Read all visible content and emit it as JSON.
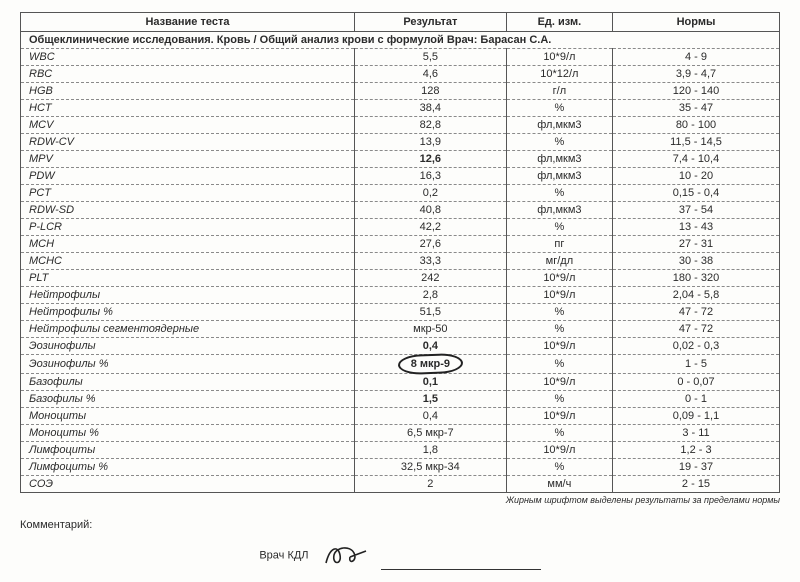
{
  "headers": {
    "name": "Название теста",
    "result": "Результат",
    "unit": "Ед. изм.",
    "norm": "Нормы"
  },
  "section_title": "Общеклинические исследования. Кровь / Общий анализ крови с формулой  Врач: Барасан С.А.",
  "rows": [
    {
      "name": "WBC",
      "result": "5,5",
      "unit": "10*9/л",
      "norm": "4 - 9"
    },
    {
      "name": "RBC",
      "result": "4,6",
      "unit": "10*12/л",
      "norm": "3,9 - 4,7"
    },
    {
      "name": "HGB",
      "result": "128",
      "unit": "г/л",
      "norm": "120 - 140"
    },
    {
      "name": "HCT",
      "result": "38,4",
      "unit": "%",
      "norm": "35 - 47"
    },
    {
      "name": "MCV",
      "result": "82,8",
      "unit": "фл,мкм3",
      "norm": "80 - 100"
    },
    {
      "name": "RDW-CV",
      "result": "13,9",
      "unit": "%",
      "norm": "11,5 - 14,5"
    },
    {
      "name": "MPV",
      "result": "12,6",
      "unit": "фл,мкм3",
      "norm": "7,4 - 10,4",
      "bold": true
    },
    {
      "name": "PDW",
      "result": "16,3",
      "unit": "фл,мкм3",
      "norm": "10 - 20"
    },
    {
      "name": "PCT",
      "result": "0,2",
      "unit": "%",
      "norm": "0,15 - 0,4"
    },
    {
      "name": "RDW-SD",
      "result": "40,8",
      "unit": "фл,мкм3",
      "norm": "37 - 54"
    },
    {
      "name": "P-LCR",
      "result": "42,2",
      "unit": "%",
      "norm": "13 - 43"
    },
    {
      "name": "MCH",
      "result": "27,6",
      "unit": "пг",
      "norm": "27 - 31"
    },
    {
      "name": "MCHC",
      "result": "33,3",
      "unit": "мг/дл",
      "norm": "30 - 38"
    },
    {
      "name": "PLT",
      "result": "242",
      "unit": "10*9/л",
      "norm": "180 - 320"
    },
    {
      "name": "Нейтрофилы",
      "result": "2,8",
      "unit": "10*9/л",
      "norm": "2,04 - 5,8"
    },
    {
      "name": "Нейтрофилы %",
      "result": "51,5",
      "unit": "%",
      "norm": "47 - 72"
    },
    {
      "name": "Нейтрофилы сегментоядерные",
      "result": "мкр-50",
      "unit": "%",
      "norm": "47 - 72"
    },
    {
      "name": "Эозинофилы",
      "result": "0,4",
      "unit": "10*9/л",
      "norm": "0,02 - 0,3",
      "bold": true
    },
    {
      "name": "Эозинофилы %",
      "result": "8  мкр-9",
      "unit": "%",
      "norm": "1 - 5",
      "bold": true,
      "circled": true
    },
    {
      "name": "Базофилы",
      "result": "0,1",
      "unit": "10*9/л",
      "norm": "0 - 0,07",
      "bold": true
    },
    {
      "name": "Базофилы %",
      "result": "1,5",
      "unit": "%",
      "norm": "0 - 1",
      "bold": true
    },
    {
      "name": "Моноциты",
      "result": "0,4",
      "unit": "10*9/л",
      "norm": "0,09 - 1,1"
    },
    {
      "name": "Моноциты %",
      "result": "6,5  мкр-7",
      "unit": "%",
      "norm": "3 - 11"
    },
    {
      "name": "Лимфоциты",
      "result": "1,8",
      "unit": "10*9/л",
      "norm": "1,2 - 3"
    },
    {
      "name": "Лимфоциты %",
      "result": "32,5  мкр-34",
      "unit": "%",
      "norm": "19 - 37"
    },
    {
      "name": "СОЭ",
      "result": "2",
      "unit": "мм/ч",
      "norm": "2 - 15"
    }
  ],
  "footnote": "Жирным шрифтом выделены результаты за пределами нормы",
  "comment_label": "Комментарий:",
  "doctor_label": "Врач КДЛ"
}
